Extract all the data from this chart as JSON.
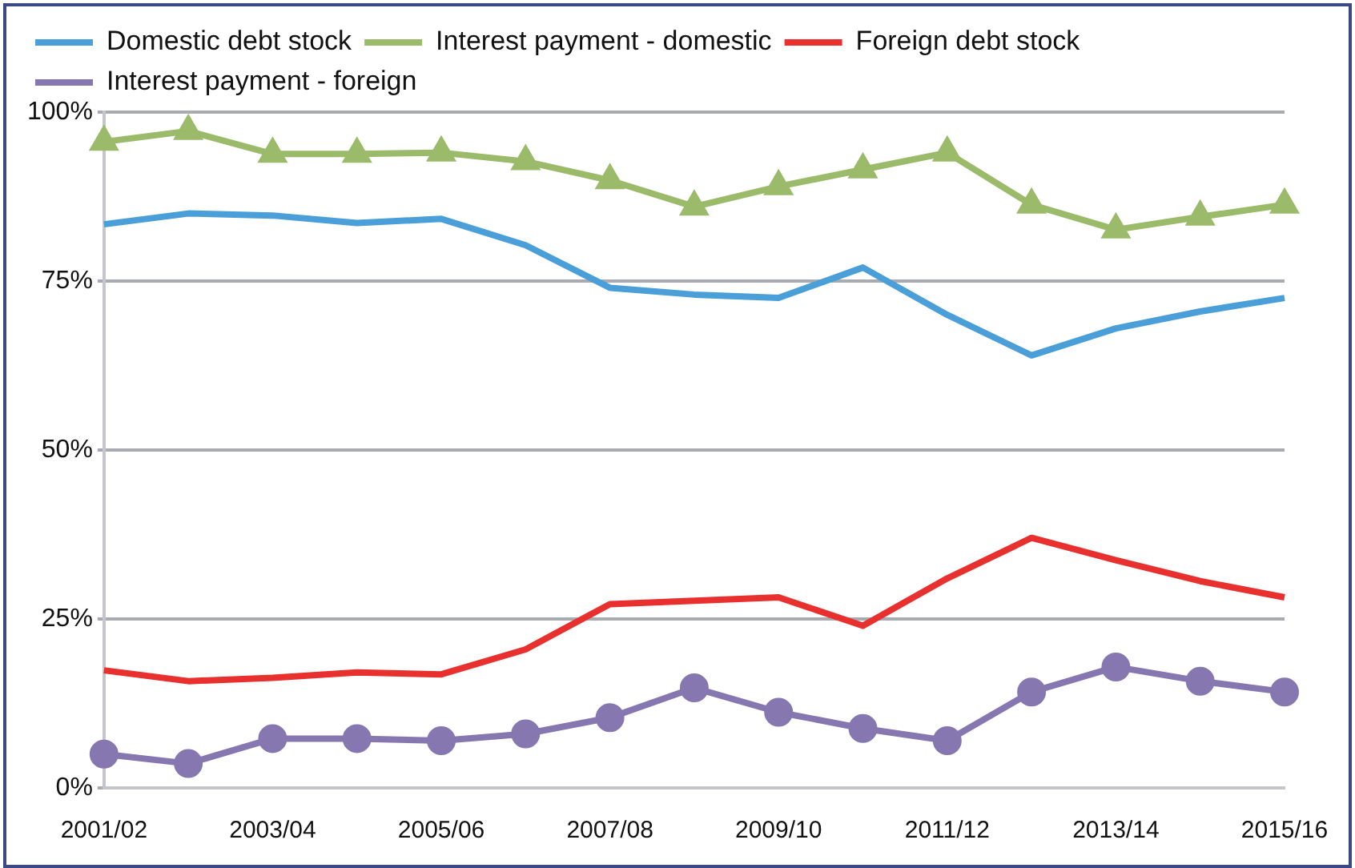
{
  "chart_data": {
    "type": "line",
    "categories": [
      "2001/02",
      null,
      "2003/04",
      null,
      "2005/06",
      null,
      "2007/08",
      null,
      "2009/10",
      null,
      "2011/12",
      null,
      "2013/14",
      null,
      "2015/16"
    ],
    "series": [
      {
        "name": "Domestic debt stock",
        "color": "#4a9fd8",
        "marker": "none",
        "values": [
          83.4,
          85,
          84.7,
          83.6,
          84.2,
          80.3,
          74,
          73,
          72.5,
          77,
          70,
          64,
          68,
          70.5,
          72.5
        ]
      },
      {
        "name": "Interest payment - domestic",
        "color": "#9bbb6b",
        "marker": "triangle",
        "values": [
          95.6,
          97.2,
          93.8,
          93.8,
          94,
          92.7,
          89.9,
          86,
          89,
          91.5,
          94,
          86.3,
          82.6,
          84.5,
          86.3
        ]
      },
      {
        "name": "Foreign debt stock",
        "color": "#e8312f",
        "marker": "none",
        "values": [
          17.4,
          15.8,
          16.3,
          17.1,
          16.8,
          20.5,
          27.2,
          27.7,
          28.2,
          24,
          31,
          37,
          33.7,
          30.6,
          28.2
        ]
      },
      {
        "name": "Interest payment - foreign",
        "color": "#8677b0",
        "marker": "circle",
        "values": [
          5,
          3.6,
          7.3,
          7.3,
          7,
          8,
          10.4,
          14.8,
          11.2,
          8.8,
          7,
          14.2,
          17.9,
          15.8,
          14.2
        ]
      }
    ],
    "ylim": [
      0,
      100
    ],
    "yticks": [
      {
        "value": 0,
        "label": "0%"
      },
      {
        "value": 25,
        "label": "25%"
      },
      {
        "value": 50,
        "label": "50%"
      },
      {
        "value": 75,
        "label": "75%"
      },
      {
        "value": 100,
        "label": "100%"
      }
    ],
    "grid": "y",
    "legend": "top"
  }
}
